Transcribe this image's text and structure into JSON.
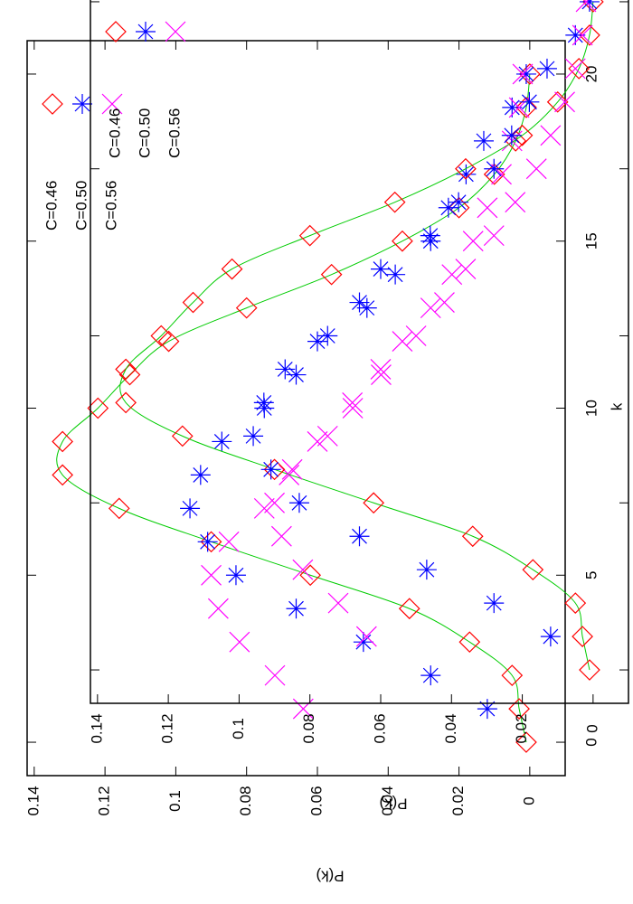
{
  "chart_data": {
    "type": "scatter",
    "xlabel": "k",
    "ylabel": "P(k)",
    "x": [
      0,
      1,
      2,
      3,
      4,
      5,
      6,
      7,
      8,
      9,
      10,
      11,
      12,
      13,
      14,
      15,
      16,
      17,
      18,
      19,
      20
    ],
    "series": [
      {
        "name": "C=0.46",
        "color": "#ff0000",
        "marker": "diamond",
        "fit_color": "#00cc00",
        "values": [
          0.001,
          0.003,
          0.005,
          0.017,
          0.034,
          0.062,
          0.09,
          0.116,
          0.132,
          0.132,
          0.122,
          0.113,
          0.102,
          0.08,
          0.056,
          0.036,
          0.02,
          0.01,
          0.004,
          0.001,
          0
        ]
      },
      {
        "name": "C=0.50",
        "color": "#0000ff",
        "marker": "asterisk",
        "values": [
          null,
          0.012,
          0.028,
          0.047,
          0.066,
          0.083,
          0.091,
          0.096,
          0.093,
          0.087,
          0.075,
          0.066,
          0.06,
          0.046,
          0.038,
          0.028,
          0.023,
          0.018,
          0.013,
          0.005,
          0.001
        ]
      },
      {
        "name": "C=0.56",
        "color": "#ff00ff",
        "marker": "cross",
        "values": [
          null,
          0.064,
          0.072,
          0.082,
          0.088,
          0.09,
          0.085,
          0.075,
          0.068,
          0.06,
          0.05,
          0.042,
          0.036,
          0.028,
          0.022,
          0.016,
          0.012,
          0.008,
          0.005,
          0.003,
          0.002
        ]
      }
    ],
    "xlim": [
      -1,
      21
    ],
    "xticks": [
      0,
      5,
      10,
      15,
      20
    ],
    "ylim": [
      -0.01,
      0.142
    ],
    "yticks": [
      0,
      0.02,
      0.04,
      0.06,
      0.08,
      0.1,
      0.12,
      0.14
    ]
  }
}
